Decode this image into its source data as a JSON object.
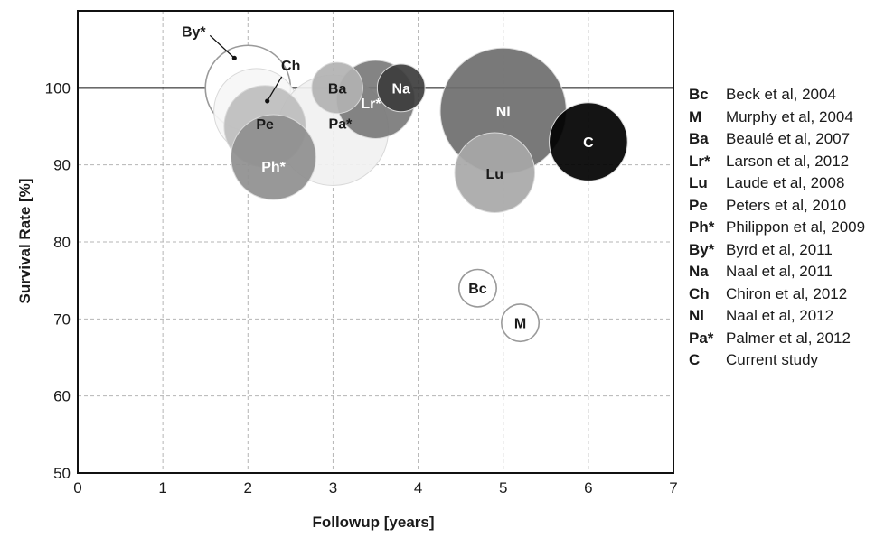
{
  "chart_data": {
    "type": "scatter",
    "xlabel": "Followup [years]",
    "ylabel": "Survival Rate [%]",
    "xlim": [
      0,
      7
    ],
    "ylim": [
      50,
      110
    ],
    "xticks": [
      "0",
      "1",
      "2",
      "3",
      "4",
      "5",
      "6",
      "7"
    ],
    "yticks": [
      "50",
      "60",
      "70",
      "80",
      "90",
      "100"
    ],
    "reference_line_y": 100,
    "grid": "dashed",
    "legend_position": "right",
    "points": [
      {
        "code": "By*",
        "study": "Byrd et al, 2011",
        "x": 2.0,
        "y": 100,
        "radius": 5,
        "color": "#ffffff",
        "label_color": "#1a1a1a",
        "label_outside": true
      },
      {
        "code": "Ch",
        "study": "Chiron et al, 2012",
        "x": 2.1,
        "y": 97,
        "radius": 5,
        "color": "#f6f6f6",
        "label_color": "#1a1a1a",
        "label_outside": true
      },
      {
        "code": "Pa*",
        "study": "Palmer et al, 2012",
        "x": 3.0,
        "y": 94.5,
        "radius": 6.5,
        "color": "#f1f1f1",
        "label_color": "#1a1a1a"
      },
      {
        "code": "Pe",
        "study": "Peters et al, 2010",
        "x": 2.2,
        "y": 95,
        "radius": 4.8,
        "color": "#bdbdbd",
        "label_color": "#1a1a1a"
      },
      {
        "code": "Ph*",
        "study": "Philippon et al, 2009",
        "x": 2.3,
        "y": 91,
        "radius": 5,
        "color": "#8f8f8f",
        "label_color": "#ffffff"
      },
      {
        "code": "Lr*",
        "study": "Larson et al, 2012",
        "x": 3.5,
        "y": 98.5,
        "radius": 4.6,
        "color": "#7a7a7a",
        "label_color": "#ffffff"
      },
      {
        "code": "Ba",
        "study": "Beaulé et al, 2007",
        "x": 3.05,
        "y": 100,
        "radius": 3,
        "color": "#b2b2b2",
        "label_color": "#1a1a1a"
      },
      {
        "code": "Na",
        "study": "Naal et al, 2011",
        "x": 3.8,
        "y": 100,
        "radius": 2.8,
        "color": "#3d3d3d",
        "label_color": "#ffffff"
      },
      {
        "code": "Nl",
        "study": "Naal et al, 2012",
        "x": 5.0,
        "y": 97,
        "radius": 7.4,
        "color": "#6e6e6e",
        "label_color": "#ffffff"
      },
      {
        "code": "Lu",
        "study": "Laude et al, 2008",
        "x": 4.9,
        "y": 89,
        "radius": 4.7,
        "color": "#a8a8a8",
        "label_color": "#1a1a1a"
      },
      {
        "code": "C",
        "study": "Current study",
        "x": 6.0,
        "y": 93,
        "radius": 4.6,
        "color": "#000000",
        "label_color": "#ffffff"
      },
      {
        "code": "Bc",
        "study": "Beck et al, 2004",
        "x": 4.7,
        "y": 74,
        "radius": 2.2,
        "color": "#ffffff",
        "label_color": "#1a1a1a"
      },
      {
        "code": "M",
        "study": "Murphy et al, 2004",
        "x": 5.2,
        "y": 69.5,
        "radius": 2.2,
        "color": "#ffffff",
        "label_color": "#1a1a1a"
      }
    ],
    "legend": [
      {
        "code": "Bc",
        "text": "Beck et al, 2004"
      },
      {
        "code": "M",
        "text": "Murphy et al, 2004"
      },
      {
        "code": "Ba",
        "text": "Beaulé et al, 2007"
      },
      {
        "code": "Lr*",
        "text": "Larson et al, 2012"
      },
      {
        "code": "Lu",
        "text": "Laude et al, 2008"
      },
      {
        "code": "Pe",
        "text": "Peters et al, 2010"
      },
      {
        "code": "Ph*",
        "text": "Philippon et al, 2009"
      },
      {
        "code": "By*",
        "text": "Byrd et al, 2011"
      },
      {
        "code": "Na",
        "text": "Naal et al, 2011"
      },
      {
        "code": "Ch",
        "text": "Chiron et al, 2012"
      },
      {
        "code": "Nl",
        "text": "Naal et al, 2012"
      },
      {
        "code": "Pa*",
        "text": "Palmer et al, 2012"
      },
      {
        "code": "C",
        "text": "Current study"
      }
    ]
  }
}
